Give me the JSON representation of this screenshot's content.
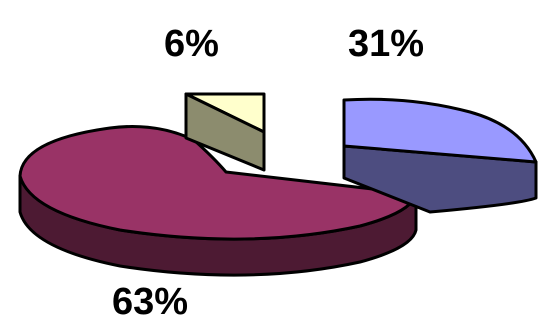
{
  "chart_data": {
    "type": "pie",
    "style": "3d-exploded",
    "title": "",
    "slices": [
      {
        "label": "63%",
        "value": 63,
        "top_color": "#993366",
        "side_color": "#4d1a33"
      },
      {
        "label": "6%",
        "value": 6,
        "top_color": "#ffffcc",
        "side_color": "#8c8c6e"
      },
      {
        "label": "31%",
        "value": 31,
        "top_color": "#9999ff",
        "side_color": "#4d4d80"
      }
    ],
    "grid": false,
    "legend": "none"
  }
}
